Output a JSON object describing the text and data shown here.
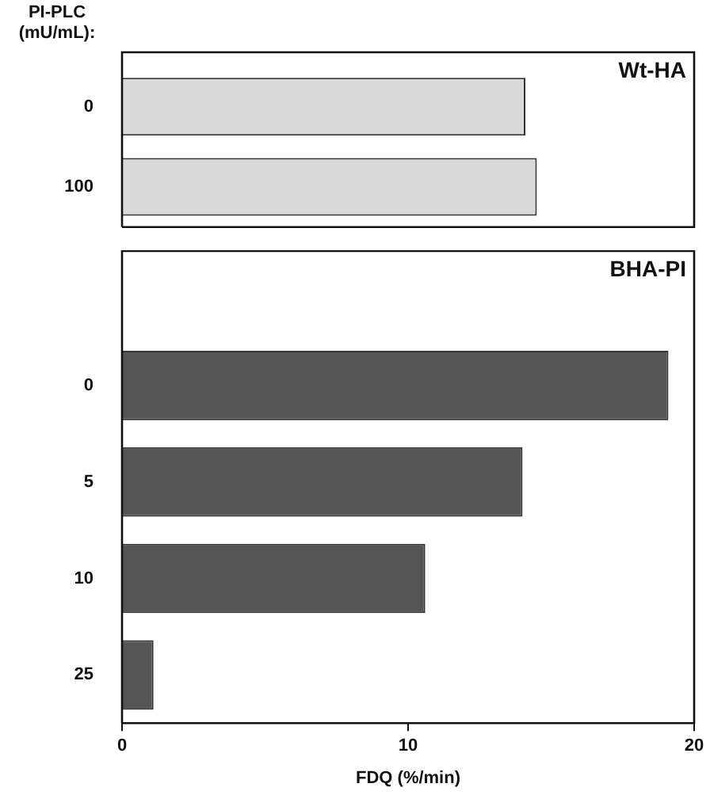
{
  "chart_data": [
    {
      "type": "bar",
      "orientation": "horizontal",
      "title": "Wt-HA",
      "ylabel": "PI-PLC (mU/mL):",
      "categories": [
        "0",
        "100"
      ],
      "values": [
        14.1,
        14.5
      ],
      "color": "#d9d9d9",
      "xlim": [
        0,
        20
      ],
      "xticks": [
        0,
        10,
        20
      ],
      "tick_labels": "y"
    },
    {
      "type": "bar",
      "orientation": "horizontal",
      "title": "BHA-PI",
      "xlabel": "FDQ (%/min)",
      "categories": [
        "0",
        "5",
        "10",
        "25"
      ],
      "values": [
        19.1,
        14.0,
        10.6,
        1.1
      ],
      "color": "#555555",
      "xlim": [
        0,
        20
      ],
      "xticks": [
        0,
        10,
        20
      ]
    }
  ]
}
